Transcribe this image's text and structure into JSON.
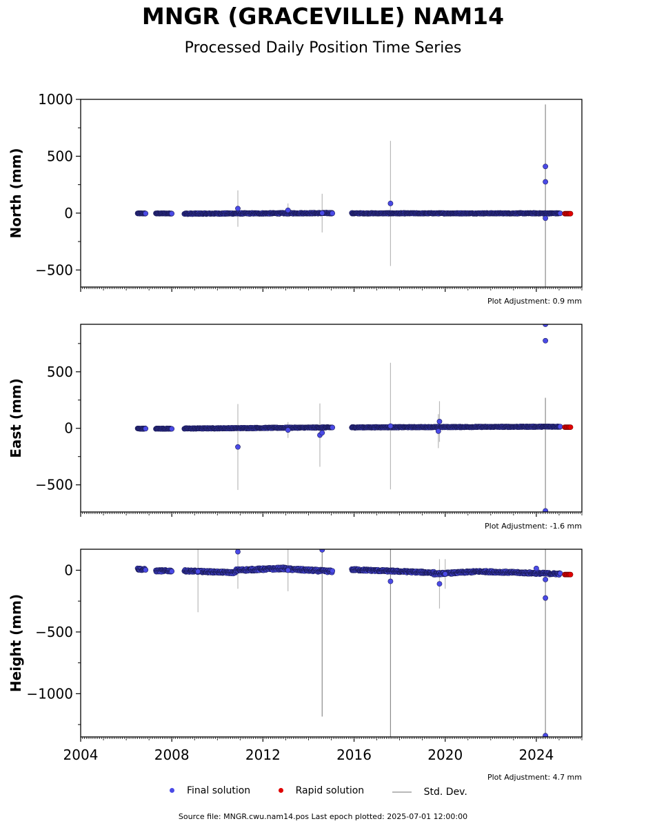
{
  "title": "MNGR (GRACEVILLE) NAM14",
  "subtitle": "Processed Daily Position Time Series",
  "legend": {
    "final": "Final solution",
    "rapid": "Rapid solution",
    "std": "Std. Dev."
  },
  "source_text": "Source file: MNGR.cwu.nam14.pos  Last epoch plotted: 2025-07-01 12:00:00",
  "colors": {
    "final": "#4a4ae6",
    "final_edge": "#1c1c5a",
    "rapid": "#e00000",
    "std": "#b8b8b8"
  },
  "chart_data": [
    {
      "type": "scatter",
      "ylabel": "North (mm)",
      "xlim": [
        2004.0,
        2026.0
      ],
      "ylim": [
        -650,
        1000
      ],
      "yticks": [
        -500,
        0,
        500,
        1000
      ],
      "xticks": [
        2004,
        2008,
        2012,
        2016,
        2020,
        2024
      ],
      "show_xtick_labels": false,
      "adjustment": "Plot Adjustment: 0.9 mm",
      "segments": [
        {
          "start": 2006.5,
          "end": 2006.85,
          "v0": -3,
          "v1": -3,
          "amp": 3
        },
        {
          "start": 2007.3,
          "end": 2008.0,
          "v0": -3,
          "v1": -3,
          "amp": 3
        },
        {
          "start": 2008.55,
          "end": 2015.05,
          "v0": -5,
          "v1": 0,
          "amp": 5
        },
        {
          "start": 2015.9,
          "end": 2025.05,
          "v0": -2,
          "v1": -2,
          "amp": 4
        }
      ],
      "outliers": [
        {
          "x": 2010.9,
          "y": 40,
          "err": 160
        },
        {
          "x": 2013.1,
          "y": 25,
          "err": 60
        },
        {
          "x": 2014.6,
          "y": 0,
          "err": 170
        },
        {
          "x": 2017.6,
          "y": 85,
          "err": 550
        },
        {
          "x": 2024.4,
          "y": 410,
          "err": 0
        },
        {
          "x": 2024.4,
          "y": 275,
          "err": 0
        },
        {
          "x": 2024.4,
          "y": -45,
          "err": 1000
        }
      ],
      "rapid": {
        "start": 2025.25,
        "end": 2025.5,
        "value": -5
      }
    },
    {
      "type": "scatter",
      "ylabel": "East (mm)",
      "xlim": [
        2004.0,
        2026.0
      ],
      "ylim": [
        -740,
        920
      ],
      "yticks": [
        -500,
        0,
        500
      ],
      "xticks": [
        2004,
        2008,
        2012,
        2016,
        2020,
        2024
      ],
      "show_xtick_labels": false,
      "adjustment": "Plot Adjustment: -1.6 mm",
      "segments": [
        {
          "start": 2006.5,
          "end": 2006.85,
          "v0": -3,
          "v1": -3,
          "amp": 3
        },
        {
          "start": 2007.3,
          "end": 2008.0,
          "v0": -3,
          "v1": -3,
          "amp": 3
        },
        {
          "start": 2008.55,
          "end": 2015.05,
          "v0": -2,
          "v1": 8,
          "amp": 4
        },
        {
          "start": 2015.9,
          "end": 2025.05,
          "v0": 8,
          "v1": 15,
          "amp": 4
        }
      ],
      "outliers": [
        {
          "x": 2010.9,
          "y": -165,
          "err": 380
        },
        {
          "x": 2013.1,
          "y": -15,
          "err": 70
        },
        {
          "x": 2014.5,
          "y": -60,
          "err": 280
        },
        {
          "x": 2014.6,
          "y": -40,
          "err": 0
        },
        {
          "x": 2017.6,
          "y": 20,
          "err": 560
        },
        {
          "x": 2019.75,
          "y": 60,
          "err": 180
        },
        {
          "x": 2019.7,
          "y": -25,
          "err": 150
        },
        {
          "x": 2024.4,
          "y": 920,
          "err": 0
        },
        {
          "x": 2024.4,
          "y": 775,
          "err": 0
        },
        {
          "x": 2024.4,
          "y": -730,
          "err": 1000
        }
      ],
      "rapid": {
        "start": 2025.25,
        "end": 2025.5,
        "value": 10
      }
    },
    {
      "type": "scatter",
      "ylabel": "Height (mm)",
      "xlim": [
        2004.0,
        2026.0
      ],
      "ylim": [
        -1350,
        170
      ],
      "yticks": [
        -1000,
        -500,
        0
      ],
      "xticks": [
        2004,
        2008,
        2012,
        2016,
        2020,
        2024
      ],
      "xtick_labels": [
        "2004",
        "2008",
        "2012",
        "2016",
        "2020",
        "2024"
      ],
      "show_xtick_labels": true,
      "adjustment": "Plot Adjustment: 4.7 mm",
      "segments": [
        {
          "start": 2006.5,
          "end": 2006.85,
          "v0": 10,
          "v1": 5,
          "amp": 8
        },
        {
          "start": 2007.3,
          "end": 2008.0,
          "v0": -5,
          "v1": -5,
          "amp": 8
        },
        {
          "start": 2008.55,
          "end": 2010.8,
          "v0": -5,
          "v1": -20,
          "amp": 8
        },
        {
          "start": 2010.8,
          "end": 2013.0,
          "v0": 0,
          "v1": 15,
          "amp": 10
        },
        {
          "start": 2013.0,
          "end": 2015.05,
          "v0": 10,
          "v1": -10,
          "amp": 10
        },
        {
          "start": 2015.9,
          "end": 2019.5,
          "v0": 5,
          "v1": -20,
          "amp": 8
        },
        {
          "start": 2019.5,
          "end": 2021.5,
          "v0": -30,
          "v1": -10,
          "amp": 8
        },
        {
          "start": 2021.5,
          "end": 2025.05,
          "v0": -10,
          "v1": -30,
          "amp": 8
        }
      ],
      "outliers": [
        {
          "x": 2010.9,
          "y": 150,
          "err": 300
        },
        {
          "x": 2009.15,
          "y": -10,
          "err": 330
        },
        {
          "x": 2013.1,
          "y": 0,
          "err": 170
        },
        {
          "x": 2014.6,
          "y": 165,
          "err": 1350
        },
        {
          "x": 2017.6,
          "y": -90,
          "err": 1350
        },
        {
          "x": 2019.75,
          "y": -110,
          "err": 200
        },
        {
          "x": 2020.0,
          "y": -30,
          "err": 120
        },
        {
          "x": 2024.4,
          "y": -75,
          "err": 1300
        },
        {
          "x": 2024.4,
          "y": -225,
          "err": 0
        },
        {
          "x": 2024.4,
          "y": -1340,
          "err": 0
        },
        {
          "x": 2024.0,
          "y": 15,
          "err": 0
        }
      ],
      "rapid": {
        "start": 2025.25,
        "end": 2025.5,
        "value": -35
      }
    }
  ]
}
